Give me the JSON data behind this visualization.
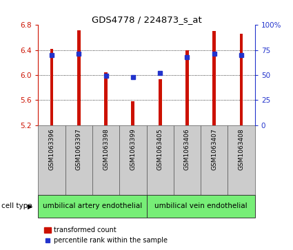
{
  "title": "GDS4778 / 224873_s_at",
  "samples": [
    "GSM1063396",
    "GSM1063397",
    "GSM1063398",
    "GSM1063399",
    "GSM1063405",
    "GSM1063406",
    "GSM1063407",
    "GSM1063408"
  ],
  "bar_values": [
    6.42,
    6.72,
    6.04,
    5.58,
    5.93,
    6.4,
    6.7,
    6.66
  ],
  "percentile_values": [
    70,
    71,
    49,
    48,
    52,
    68,
    71,
    70
  ],
  "ylim_left": [
    5.2,
    6.8
  ],
  "ylim_right": [
    0,
    100
  ],
  "yticks_left": [
    5.2,
    5.6,
    6.0,
    6.4,
    6.8
  ],
  "yticks_right": [
    0,
    25,
    50,
    75,
    100
  ],
  "bar_color": "#cc1100",
  "marker_color": "#2233cc",
  "bar_bottom": 5.2,
  "cell_types": [
    "umbilical artery endothelial",
    "umbilical vein endothelial"
  ],
  "cell_type_color": "#77ee77",
  "xtick_bg_color": "#cccccc",
  "left_axis_color": "#cc1100",
  "right_axis_color": "#2233cc",
  "legend_red_label": "transformed count",
  "legend_blue_label": "percentile rank within the sample",
  "bar_width": 0.12
}
